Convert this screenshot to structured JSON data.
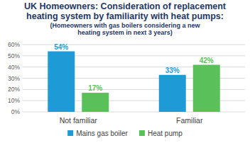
{
  "chart_data": {
    "type": "bar",
    "title": "UK Homeowners: Consideration of replacement heating system by familiarity with heat pumps:",
    "subtitle": "(Homeowners with gas boilers considering a new heating system in next 3 years)",
    "categories": [
      "Not familiar",
      "Familiar"
    ],
    "series": [
      {
        "name": "Mains gas boiler",
        "color": "#1e9bd7",
        "values": [
          54,
          33
        ],
        "value_labels": [
          "54%",
          "33%"
        ]
      },
      {
        "name": "Heat pump",
        "color": "#5ac15a",
        "values": [
          17,
          42
        ],
        "value_labels": [
          "17%",
          "42%"
        ]
      }
    ],
    "ylim": [
      0,
      60
    ],
    "yticks": [
      {
        "value": 0,
        "label": "0%"
      },
      {
        "value": 10,
        "label": "10%"
      },
      {
        "value": 20,
        "label": "20%"
      },
      {
        "value": 30,
        "label": "30%"
      },
      {
        "value": 40,
        "label": "40%"
      },
      {
        "value": 50,
        "label": "50%"
      },
      {
        "value": 60,
        "label": "60%"
      }
    ],
    "grid": true,
    "legend": "bottom",
    "data_labels": true
  }
}
